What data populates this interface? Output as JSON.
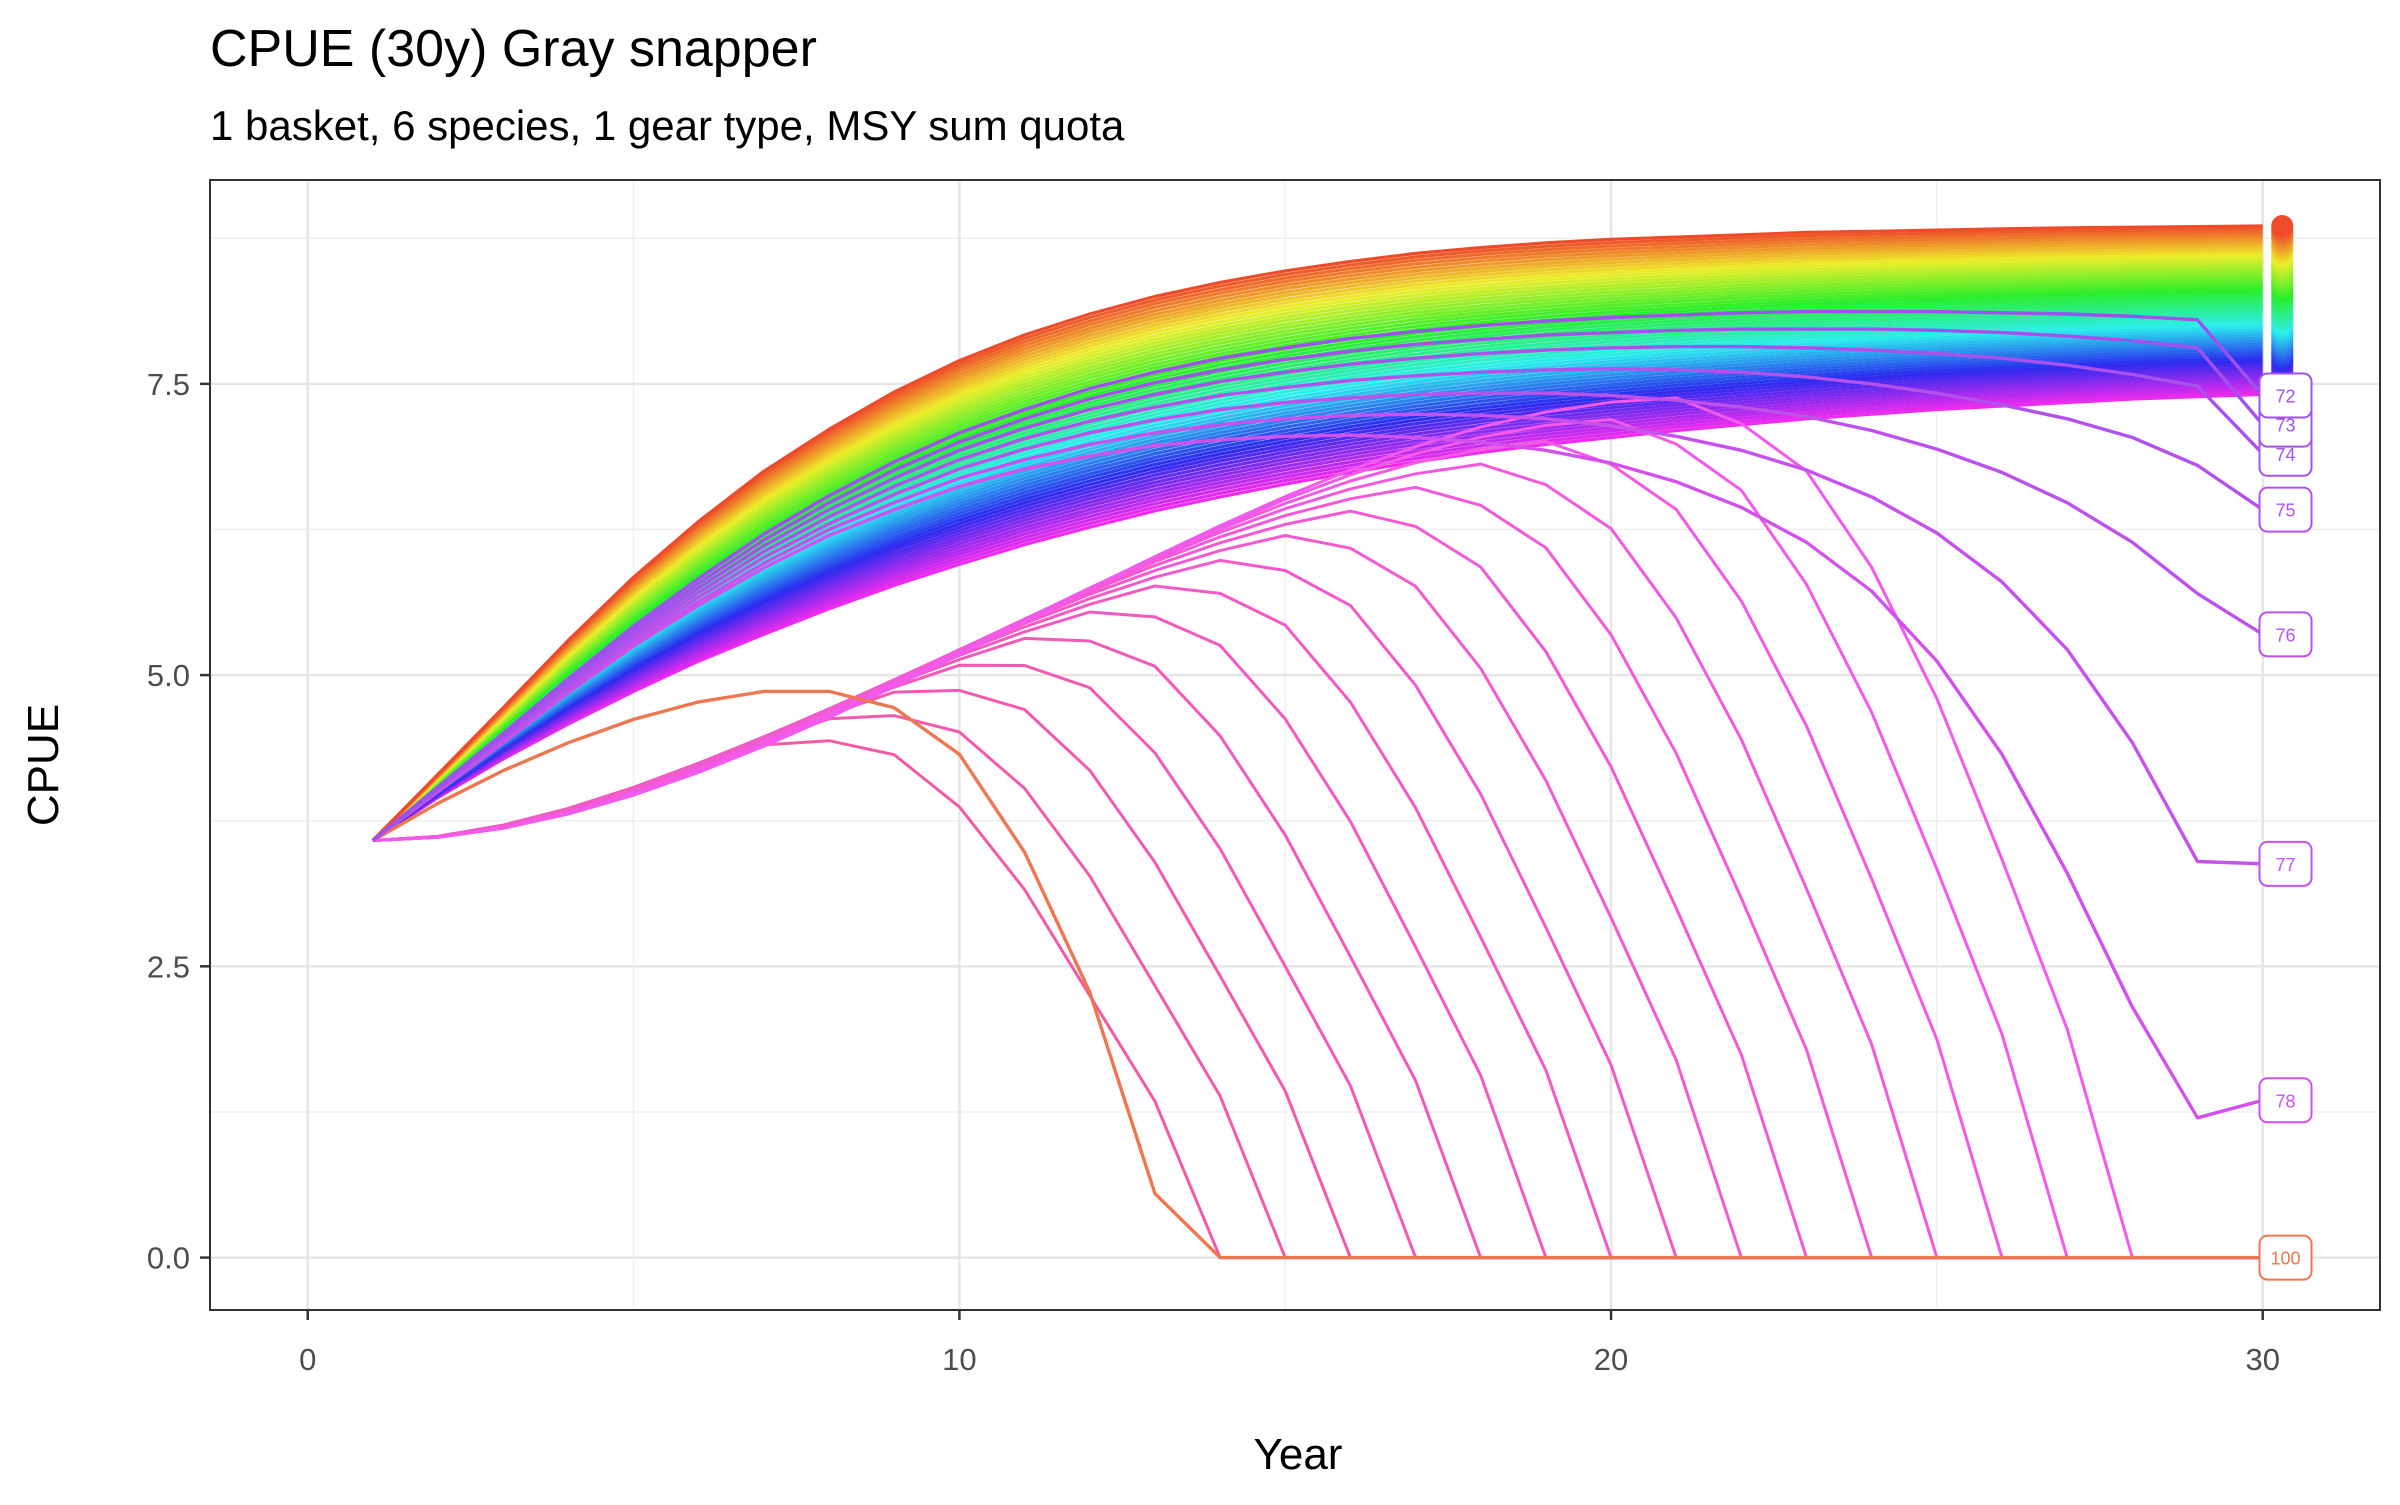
{
  "chart_data": {
    "type": "line",
    "title": "CPUE (30y) Gray snapper",
    "subtitle": "1 basket, 6 species, 1 gear type, MSY sum quota",
    "xlabel": "Year",
    "ylabel": "CPUE",
    "xlim": [
      -1.5,
      31.8
    ],
    "ylim": [
      -0.45,
      9.25
    ],
    "x_ticks": [
      0,
      10,
      20,
      30
    ],
    "x_tick_labels": [
      "0",
      "10",
      "20",
      "30"
    ],
    "y_ticks": [
      0.0,
      2.5,
      5.0,
      7.5
    ],
    "y_tick_labels": [
      "0.0",
      "2.5",
      "5.0",
      "7.5"
    ],
    "grid": true,
    "legend": "none",
    "series_color_scheme": "hue (red to green to blue to magenta), one color per effort level",
    "end_labels_visible": [
      "72",
      "73",
      "74",
      "75",
      "76",
      "77",
      "78",
      "100"
    ],
    "series_count_note": "many series (one per effort level); highlighted labeled series listed in series",
    "series": [
      {
        "name": "100",
        "x": [
          1,
          2,
          3,
          4,
          5,
          6,
          7,
          8,
          9,
          10,
          11,
          12,
          13,
          14,
          15,
          30
        ],
        "values": [
          3.58,
          3.9,
          4.18,
          4.42,
          4.62,
          4.77,
          4.86,
          4.86,
          4.72,
          4.32,
          3.48,
          2.28,
          0.55,
          0.0,
          0.0,
          0.0
        ]
      },
      {
        "name": "78",
        "x": [
          1,
          2,
          3,
          4,
          5,
          6,
          7,
          8,
          9,
          10,
          11,
          12,
          13,
          14,
          15,
          16,
          17,
          18,
          19,
          20,
          21,
          22,
          23,
          24,
          25,
          26,
          27,
          28,
          29,
          30
        ],
        "values": [
          3.58,
          4.0,
          4.42,
          4.85,
          5.25,
          5.6,
          5.92,
          6.2,
          6.42,
          6.62,
          6.77,
          6.88,
          6.97,
          7.02,
          7.05,
          7.06,
          7.04,
          7.0,
          6.93,
          6.82,
          6.66,
          6.44,
          6.14,
          5.72,
          5.12,
          4.32,
          3.3,
          2.15,
          1.2,
          1.35
        ]
      },
      {
        "name": "77",
        "x": [
          1,
          2,
          3,
          4,
          5,
          6,
          7,
          8,
          9,
          10,
          11,
          12,
          13,
          14,
          15,
          16,
          17,
          18,
          19,
          20,
          21,
          22,
          23,
          24,
          25,
          26,
          27,
          28,
          29,
          30
        ],
        "values": [
          3.58,
          4.0,
          4.43,
          4.86,
          5.27,
          5.63,
          5.96,
          6.25,
          6.48,
          6.69,
          6.85,
          6.98,
          7.08,
          7.15,
          7.2,
          7.23,
          7.24,
          7.23,
          7.2,
          7.14,
          7.05,
          6.93,
          6.76,
          6.53,
          6.22,
          5.8,
          5.22,
          4.42,
          3.4,
          3.38
        ]
      },
      {
        "name": "76",
        "x": [
          1,
          2,
          3,
          4,
          5,
          6,
          7,
          8,
          9,
          10,
          11,
          12,
          13,
          14,
          15,
          16,
          17,
          18,
          19,
          20,
          21,
          22,
          23,
          24,
          25,
          26,
          27,
          28,
          29,
          30
        ],
        "values": [
          3.58,
          4.01,
          4.44,
          4.88,
          5.3,
          5.67,
          6.01,
          6.3,
          6.55,
          6.77,
          6.94,
          7.08,
          7.19,
          7.28,
          7.34,
          7.38,
          7.41,
          7.42,
          7.42,
          7.4,
          7.36,
          7.3,
          7.22,
          7.1,
          6.94,
          6.74,
          6.48,
          6.14,
          5.7,
          5.35
        ]
      },
      {
        "name": "75",
        "x": [
          1,
          2,
          3,
          4,
          5,
          6,
          7,
          8,
          9,
          10,
          11,
          12,
          13,
          14,
          15,
          16,
          17,
          18,
          19,
          20,
          21,
          22,
          23,
          24,
          25,
          26,
          27,
          28,
          29,
          30
        ],
        "values": [
          3.58,
          4.02,
          4.46,
          4.9,
          5.33,
          5.71,
          6.06,
          6.36,
          6.62,
          6.85,
          7.03,
          7.18,
          7.3,
          7.4,
          7.47,
          7.53,
          7.57,
          7.6,
          7.62,
          7.63,
          7.62,
          7.6,
          7.56,
          7.5,
          7.42,
          7.32,
          7.2,
          7.04,
          6.8,
          6.42
        ]
      },
      {
        "name": "74",
        "x": [
          1,
          2,
          3,
          4,
          5,
          6,
          7,
          8,
          9,
          10,
          11,
          12,
          13,
          14,
          15,
          16,
          17,
          18,
          19,
          20,
          21,
          22,
          23,
          24,
          25,
          26,
          27,
          28,
          29,
          30
        ],
        "values": [
          3.58,
          4.03,
          4.48,
          4.93,
          5.36,
          5.75,
          6.11,
          6.42,
          6.69,
          6.93,
          7.12,
          7.28,
          7.41,
          7.52,
          7.6,
          7.67,
          7.72,
          7.76,
          7.79,
          7.81,
          7.82,
          7.82,
          7.81,
          7.79,
          7.76,
          7.72,
          7.66,
          7.58,
          7.48,
          6.9
        ]
      },
      {
        "name": "73",
        "x": [
          1,
          2,
          3,
          4,
          5,
          6,
          7,
          8,
          9,
          10,
          11,
          12,
          13,
          14,
          15,
          16,
          17,
          18,
          19,
          20,
          21,
          22,
          23,
          24,
          25,
          26,
          27,
          28,
          29,
          30
        ],
        "values": [
          3.58,
          4.03,
          4.49,
          4.95,
          5.39,
          5.79,
          6.16,
          6.48,
          6.76,
          7.0,
          7.2,
          7.37,
          7.51,
          7.62,
          7.71,
          7.78,
          7.84,
          7.88,
          7.92,
          7.94,
          7.96,
          7.97,
          7.97,
          7.97,
          7.96,
          7.94,
          7.91,
          7.87,
          7.81,
          7.15
        ]
      },
      {
        "name": "72",
        "x": [
          1,
          2,
          3,
          4,
          5,
          6,
          7,
          8,
          9,
          10,
          11,
          12,
          13,
          14,
          15,
          16,
          17,
          18,
          19,
          20,
          21,
          22,
          23,
          24,
          25,
          26,
          27,
          28,
          29,
          30
        ],
        "values": [
          3.58,
          4.04,
          4.5,
          4.97,
          5.42,
          5.83,
          6.21,
          6.54,
          6.83,
          7.08,
          7.28,
          7.46,
          7.6,
          7.72,
          7.81,
          7.89,
          7.95,
          8.0,
          8.04,
          8.07,
          8.09,
          8.11,
          8.12,
          8.12,
          8.12,
          8.11,
          8.1,
          8.08,
          8.05,
          7.4
        ]
      }
    ]
  }
}
